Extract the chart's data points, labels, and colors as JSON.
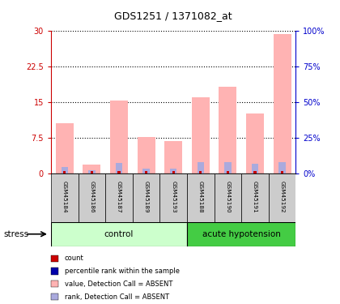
{
  "title": "GDS1251 / 1371082_at",
  "samples": [
    "GSM45184",
    "GSM45186",
    "GSM45187",
    "GSM45189",
    "GSM45193",
    "GSM45188",
    "GSM45190",
    "GSM45191",
    "GSM45192"
  ],
  "pink_bars": [
    10.5,
    1.8,
    15.2,
    7.6,
    6.8,
    16.0,
    18.2,
    12.5,
    29.2
  ],
  "blue_bars": [
    4.5,
    2.0,
    7.2,
    3.2,
    3.0,
    7.6,
    7.6,
    6.8,
    8.0
  ],
  "ylim_left": [
    0,
    30
  ],
  "ylim_right": [
    0,
    100
  ],
  "yticks_left": [
    0,
    7.5,
    15,
    22.5,
    30
  ],
  "yticks_right": [
    0,
    25,
    50,
    75,
    100
  ],
  "ytick_labels_left": [
    "0",
    "7.5",
    "15",
    "22.5",
    "30"
  ],
  "ytick_labels_right": [
    "0%",
    "25%",
    "50%",
    "75%",
    "100%"
  ],
  "left_axis_color": "#cc0000",
  "right_axis_color": "#0000cc",
  "pink_color": "#ffb3b3",
  "blue_color": "#aaaadd",
  "red_color": "#cc0000",
  "dark_blue_color": "#0000aa",
  "group_control_color": "#ccffcc",
  "group_hypotension_color": "#44cc44",
  "tick_label_area_color": "#cccccc",
  "stress_label": "stress",
  "group1_label": "control",
  "group2_label": "acute hypotension",
  "n_control": 5,
  "n_hypotension": 4,
  "legend_items": [
    {
      "color": "#cc0000",
      "label": "count"
    },
    {
      "color": "#0000aa",
      "label": "percentile rank within the sample"
    },
    {
      "color": "#ffb3b3",
      "label": "value, Detection Call = ABSENT"
    },
    {
      "color": "#aaaadd",
      "label": "rank, Detection Call = ABSENT"
    }
  ]
}
